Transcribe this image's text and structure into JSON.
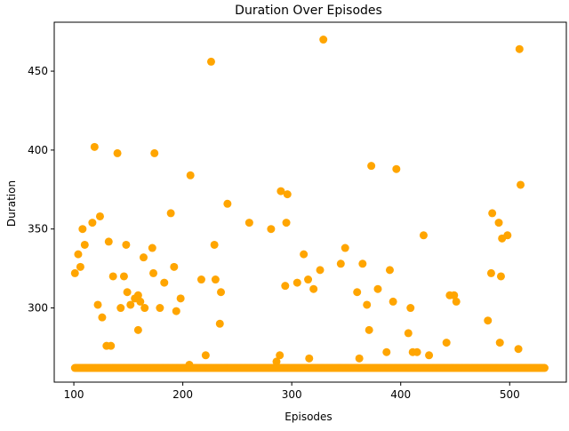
{
  "chart_data": {
    "type": "scatter",
    "title": "Duration Over Episodes",
    "xlabel": "Episodes",
    "ylabel": "Duration",
    "xlim": [
      82,
      552
    ],
    "ylim": [
      253,
      481
    ],
    "x_ticks": [
      100,
      200,
      300,
      400,
      500
    ],
    "y_ticks": [
      300,
      350,
      400,
      450
    ],
    "grid": false,
    "legend": "none",
    "point_color": "#FFA500",
    "baseline": {
      "y": 262,
      "x_start": 101,
      "x_end": 532
    },
    "points": [
      {
        "x": 101,
        "y": 322
      },
      {
        "x": 104,
        "y": 334
      },
      {
        "x": 106,
        "y": 326
      },
      {
        "x": 108,
        "y": 350
      },
      {
        "x": 110,
        "y": 340
      },
      {
        "x": 117,
        "y": 354
      },
      {
        "x": 119,
        "y": 402
      },
      {
        "x": 122,
        "y": 302
      },
      {
        "x": 124,
        "y": 358
      },
      {
        "x": 126,
        "y": 294
      },
      {
        "x": 130,
        "y": 276
      },
      {
        "x": 132,
        "y": 342
      },
      {
        "x": 134,
        "y": 276
      },
      {
        "x": 136,
        "y": 320
      },
      {
        "x": 140,
        "y": 398
      },
      {
        "x": 143,
        "y": 300
      },
      {
        "x": 146,
        "y": 320
      },
      {
        "x": 148,
        "y": 340
      },
      {
        "x": 149,
        "y": 310
      },
      {
        "x": 152,
        "y": 302
      },
      {
        "x": 156,
        "y": 306
      },
      {
        "x": 159,
        "y": 286
      },
      {
        "x": 159,
        "y": 308
      },
      {
        "x": 161,
        "y": 304
      },
      {
        "x": 164,
        "y": 332
      },
      {
        "x": 165,
        "y": 300
      },
      {
        "x": 172,
        "y": 338
      },
      {
        "x": 173,
        "y": 322
      },
      {
        "x": 174,
        "y": 398
      },
      {
        "x": 179,
        "y": 300
      },
      {
        "x": 183,
        "y": 316
      },
      {
        "x": 189,
        "y": 360
      },
      {
        "x": 192,
        "y": 326
      },
      {
        "x": 194,
        "y": 298
      },
      {
        "x": 198,
        "y": 306
      },
      {
        "x": 206,
        "y": 264
      },
      {
        "x": 207,
        "y": 384
      },
      {
        "x": 217,
        "y": 318
      },
      {
        "x": 221,
        "y": 270
      },
      {
        "x": 226,
        "y": 456
      },
      {
        "x": 229,
        "y": 340
      },
      {
        "x": 230,
        "y": 318
      },
      {
        "x": 234,
        "y": 290
      },
      {
        "x": 235,
        "y": 310
      },
      {
        "x": 241,
        "y": 366
      },
      {
        "x": 261,
        "y": 354
      },
      {
        "x": 281,
        "y": 350
      },
      {
        "x": 286,
        "y": 266
      },
      {
        "x": 289,
        "y": 270
      },
      {
        "x": 290,
        "y": 374
      },
      {
        "x": 294,
        "y": 314
      },
      {
        "x": 295,
        "y": 354
      },
      {
        "x": 296,
        "y": 372
      },
      {
        "x": 305,
        "y": 316
      },
      {
        "x": 311,
        "y": 334
      },
      {
        "x": 315,
        "y": 318
      },
      {
        "x": 316,
        "y": 268
      },
      {
        "x": 320,
        "y": 312
      },
      {
        "x": 326,
        "y": 324
      },
      {
        "x": 329,
        "y": 470
      },
      {
        "x": 345,
        "y": 328
      },
      {
        "x": 349,
        "y": 338
      },
      {
        "x": 360,
        "y": 310
      },
      {
        "x": 362,
        "y": 268
      },
      {
        "x": 365,
        "y": 328
      },
      {
        "x": 369,
        "y": 302
      },
      {
        "x": 371,
        "y": 286
      },
      {
        "x": 373,
        "y": 390
      },
      {
        "x": 379,
        "y": 312
      },
      {
        "x": 387,
        "y": 272
      },
      {
        "x": 390,
        "y": 324
      },
      {
        "x": 393,
        "y": 304
      },
      {
        "x": 396,
        "y": 388
      },
      {
        "x": 407,
        "y": 284
      },
      {
        "x": 409,
        "y": 300
      },
      {
        "x": 411,
        "y": 272
      },
      {
        "x": 415,
        "y": 272
      },
      {
        "x": 421,
        "y": 346
      },
      {
        "x": 426,
        "y": 270
      },
      {
        "x": 442,
        "y": 278
      },
      {
        "x": 445,
        "y": 308
      },
      {
        "x": 449,
        "y": 308
      },
      {
        "x": 451,
        "y": 304
      },
      {
        "x": 480,
        "y": 292
      },
      {
        "x": 483,
        "y": 322
      },
      {
        "x": 484,
        "y": 360
      },
      {
        "x": 490,
        "y": 354
      },
      {
        "x": 491,
        "y": 278
      },
      {
        "x": 492,
        "y": 320
      },
      {
        "x": 493,
        "y": 344
      },
      {
        "x": 498,
        "y": 346
      },
      {
        "x": 508,
        "y": 274
      },
      {
        "x": 509,
        "y": 464
      },
      {
        "x": 510,
        "y": 378
      }
    ]
  }
}
